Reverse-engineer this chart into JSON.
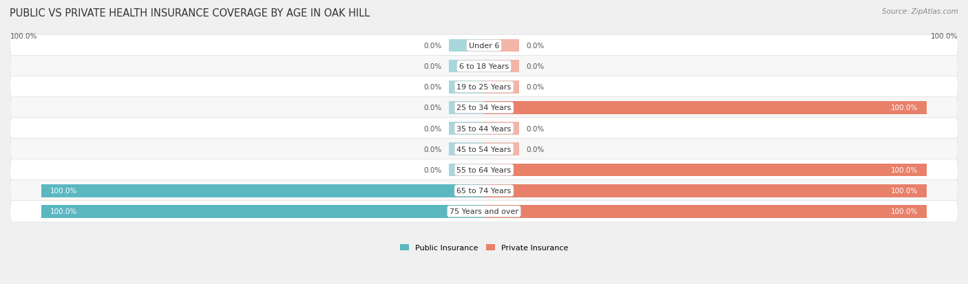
{
  "title": "PUBLIC VS PRIVATE HEALTH INSURANCE COVERAGE BY AGE IN OAK HILL",
  "source": "Source: ZipAtlas.com",
  "categories": [
    "Under 6",
    "6 to 18 Years",
    "19 to 25 Years",
    "25 to 34 Years",
    "35 to 44 Years",
    "45 to 54 Years",
    "55 to 64 Years",
    "65 to 74 Years",
    "75 Years and over"
  ],
  "public_values": [
    0.0,
    0.0,
    0.0,
    0.0,
    0.0,
    0.0,
    0.0,
    100.0,
    100.0
  ],
  "private_values": [
    0.0,
    0.0,
    0.0,
    100.0,
    0.0,
    0.0,
    100.0,
    100.0,
    100.0
  ],
  "public_color": "#5BB8C1",
  "private_color": "#E8806A",
  "public_color_light": "#A8D8DC",
  "private_color_light": "#F2B5A8",
  "public_label": "Public Insurance",
  "private_label": "Private Insurance",
  "bar_height": 0.62,
  "stub_size": 8.0,
  "background_color": "#f0f0f0",
  "row_color_odd": "#ffffff",
  "row_color_even": "#f7f7f7",
  "title_fontsize": 10.5,
  "label_fontsize": 8.0,
  "value_fontsize": 7.5,
  "source_fontsize": 7.5
}
